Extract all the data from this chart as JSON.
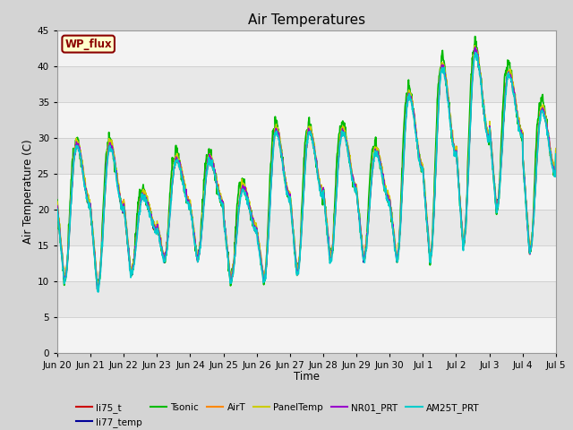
{
  "title": "Air Temperatures",
  "ylabel": "Air Temperature (C)",
  "xlabel": "Time",
  "ylim": [
    0,
    45
  ],
  "yticks": [
    0,
    5,
    10,
    15,
    20,
    25,
    30,
    35,
    40,
    45
  ],
  "bg_color": "#d4d4d4",
  "plot_bg": "#e8e8e8",
  "legend_label": "WP_flux",
  "legend_facecolor": "#ffffcc",
  "legend_edgecolor": "#8b0000",
  "series": [
    {
      "name": "li75_t",
      "color": "#cc0000",
      "lw": 1.0
    },
    {
      "name": "li77_temp",
      "color": "#000099",
      "lw": 1.0
    },
    {
      "name": "Tsonic",
      "color": "#00bb00",
      "lw": 1.3
    },
    {
      "name": "AirT",
      "color": "#ff8800",
      "lw": 1.0
    },
    {
      "name": "PanelTemp",
      "color": "#cccc00",
      "lw": 1.0
    },
    {
      "name": "NR01_PRT",
      "color": "#9900cc",
      "lw": 1.0
    },
    {
      "name": "AM25T_PRT",
      "color": "#00cccc",
      "lw": 1.3
    }
  ],
  "xtick_labels": [
    "Jun 20",
    "Jun 21",
    "Jun 22",
    "Jun 23",
    "Jun 24",
    "Jun 25",
    "Jun 26",
    "Jun 27",
    "Jun 28",
    "Jun 29",
    "Jun 30",
    "Jul 1",
    "Jul 2",
    "Jul 3",
    "Jul 4",
    "Jul 5"
  ]
}
